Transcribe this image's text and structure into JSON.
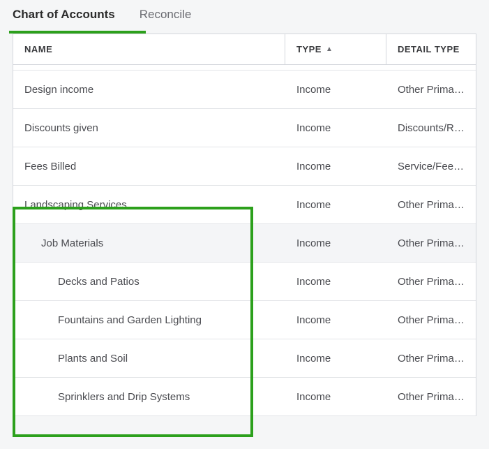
{
  "colors": {
    "accent": "#2ca01c",
    "border": "#d4d7dc",
    "row_border": "#e3e5e8",
    "text": "#393a3d",
    "muted": "#6b6c72",
    "shaded_bg": "#f4f5f7",
    "page_bg": "#f5f6f7"
  },
  "tabs": {
    "chart": "Chart of Accounts",
    "reconcile": "Reconcile",
    "active": "chart"
  },
  "table": {
    "columns": {
      "name": "NAME",
      "type": "TYPE",
      "detail": "DETAIL TYPE"
    },
    "sort": {
      "column": "type",
      "direction": "asc"
    },
    "col_widths": {
      "name": 390,
      "type": 145
    },
    "rows": [
      {
        "name": "Design income",
        "type": "Income",
        "detail": "Other Primar…",
        "indent": 0,
        "shaded": false
      },
      {
        "name": "Discounts given",
        "type": "Income",
        "detail": "Discounts/Re…",
        "indent": 0,
        "shaded": false
      },
      {
        "name": "Fees Billed",
        "type": "Income",
        "detail": "Service/Fee I…",
        "indent": 0,
        "shaded": false
      },
      {
        "name": "Landscaping Services",
        "type": "Income",
        "detail": "Other Primar…",
        "indent": 0,
        "shaded": false
      },
      {
        "name": "Job Materials",
        "type": "Income",
        "detail": "Other Primar…",
        "indent": 1,
        "shaded": true
      },
      {
        "name": "Decks and Patios",
        "type": "Income",
        "detail": "Other Primar…",
        "indent": 2,
        "shaded": false
      },
      {
        "name": "Fountains and Garden Lighting",
        "type": "Income",
        "detail": "Other Primar…",
        "indent": 2,
        "shaded": false
      },
      {
        "name": "Plants and Soil",
        "type": "Income",
        "detail": "Other Primar…",
        "indent": 2,
        "shaded": false
      },
      {
        "name": "Sprinklers and Drip Systems",
        "type": "Income",
        "detail": "Other Primar…",
        "indent": 2,
        "shaded": false
      }
    ],
    "highlight": {
      "from_row": 3,
      "to_row": 8
    }
  }
}
